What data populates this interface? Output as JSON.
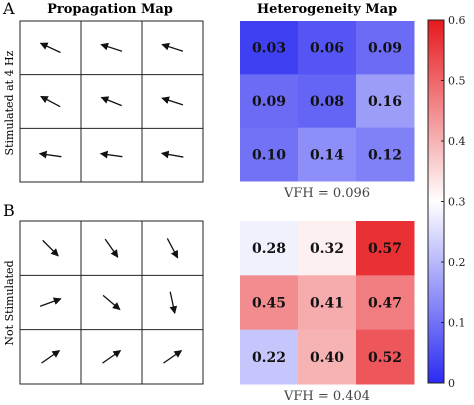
{
  "chart_data": {
    "type": "heatmap",
    "panel_labels": [
      "A",
      "B"
    ],
    "column_titles": {
      "propagation": "Propagation Map",
      "heterogeneity": "Heterogeneity Map"
    },
    "colormap": {
      "min": 0,
      "max": 0.6,
      "low_color": "#2b2bf2",
      "mid_color": "#ffffff",
      "high_color": "#e6191e",
      "ticks": [
        "0",
        "0.1",
        "0.2",
        "0.3",
        "0.4",
        "0.5",
        "0.6"
      ]
    },
    "panels": [
      {
        "row_label": "Stimulated at 4 Hz",
        "heterogeneity_values": [
          [
            0.03,
            0.06,
            0.09
          ],
          [
            0.09,
            0.08,
            0.16
          ],
          [
            0.1,
            0.14,
            0.12
          ]
        ],
        "heterogeneity_labels": [
          [
            "0.03",
            "0.06",
            "0.09"
          ],
          [
            "0.09",
            "0.08",
            "0.16"
          ],
          [
            "0.10",
            "0.14",
            "0.12"
          ]
        ],
        "arrow_angles_deg": [
          [
            155,
            162,
            162
          ],
          [
            152,
            158,
            162
          ],
          [
            172,
            172,
            170
          ]
        ],
        "vfh_text": "VFH = 0.096"
      },
      {
        "row_label": "Not Stimulated",
        "heterogeneity_values": [
          [
            0.28,
            0.32,
            0.57
          ],
          [
            0.45,
            0.41,
            0.47
          ],
          [
            0.22,
            0.4,
            0.52
          ]
        ],
        "heterogeneity_labels": [
          [
            "0.28",
            "0.32",
            "0.57"
          ],
          [
            "0.45",
            "0.41",
            "0.47"
          ],
          [
            "0.22",
            "0.40",
            "0.52"
          ]
        ],
        "arrow_angles_deg": [
          [
            -45,
            -55,
            -62
          ],
          [
            20,
            -40,
            -78
          ],
          [
            35,
            35,
            35
          ]
        ],
        "vfh_text": "VFH = 0.404"
      }
    ]
  }
}
